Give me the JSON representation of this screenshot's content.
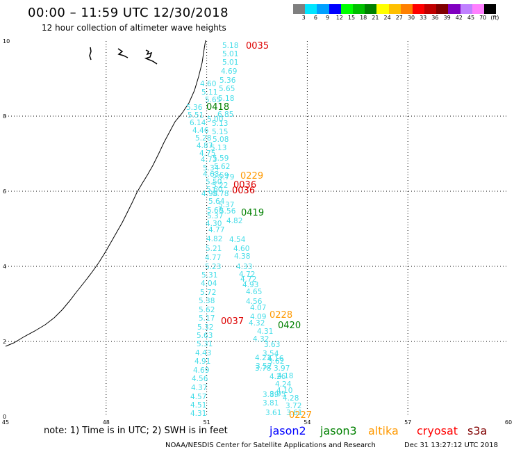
{
  "header": {
    "title": "00:00 – 11:59 UTC 12/30/2018",
    "subtitle": "12 hour collection of altimeter wave heights"
  },
  "colorbar": {
    "colors": [
      "#7f7f7f",
      "#00e5ff",
      "#00a0ff",
      "#0000ff",
      "#00ff00",
      "#00c000",
      "#008000",
      "#ffff00",
      "#ffc000",
      "#ff8000",
      "#ff0000",
      "#c00000",
      "#800000",
      "#8000c0",
      "#c080ff",
      "#ff80ff",
      "#000000"
    ],
    "labels": [
      "3",
      "6",
      "9",
      "12",
      "15",
      "18",
      "21",
      "24",
      "27",
      "30",
      "33",
      "36",
      "39",
      "42",
      "45",
      "70",
      "(ft)"
    ]
  },
  "axes": {
    "x_labels": [
      "45",
      "48",
      "51",
      "54",
      "57",
      "60"
    ],
    "y_labels": [
      "0",
      "2",
      "4",
      "6",
      "8",
      "10"
    ]
  },
  "wave_heights": {
    "color": "#44dde8",
    "values": [
      "5.18",
      "5.01",
      "5.01",
      "4.69",
      "5.36",
      "4.60",
      "5.65",
      "5.11",
      "5.18",
      "5.65",
      "5.36",
      "6.85",
      "5.51",
      "5.00",
      "6.14",
      "5.13",
      "4.46",
      "5.15",
      "5.28",
      "5.08",
      "4.87",
      "5.13",
      "4.75",
      "5.59",
      "4.73",
      "5.62",
      "5.34",
      "4.63",
      "5.59",
      "5.79",
      "5.50",
      "5.22",
      "5.60",
      "4.98",
      "5.78",
      "5.64",
      "5.37",
      "5.60",
      "5.56",
      "5.37",
      "4.82",
      "4.30",
      "4.77",
      "4.82",
      "4.54",
      "5.21",
      "4.60",
      "4.77",
      "4.38",
      "5.23",
      "4.33",
      "5.31",
      "4.72",
      "4.04",
      "4.72",
      "5.72",
      "4.93",
      "5.38",
      "4.65",
      "5.62",
      "4.56",
      "5.17",
      "4.07",
      "5.32",
      "4.09",
      "5.63",
      "4.32",
      "5.31",
      "4.31",
      "4.43",
      "4.32",
      "4.91",
      "3.63",
      "4.69",
      "3.54",
      "4.56",
      "4.23",
      "4.37",
      "4.16",
      "4.57",
      "3.52",
      "4.51",
      "3.62",
      "4.31",
      "3.78",
      "3.97",
      "4.18",
      "4.26",
      "4.24",
      "3.95",
      "3.89",
      "4.10",
      "3.81",
      "4.28",
      "3.61",
      "3.72",
      "3.61"
    ]
  },
  "pass_labels": [
    {
      "text": "0035",
      "color": "#dd0000"
    },
    {
      "text": "0418",
      "color": "#008000"
    },
    {
      "text": "0229",
      "color": "#ff9900"
    },
    {
      "text": "0036",
      "color": "#dd0000"
    },
    {
      "text": "0036",
      "color": "#dd0000"
    },
    {
      "text": "0419",
      "color": "#008000"
    },
    {
      "text": "0228",
      "color": "#ff9900"
    },
    {
      "text": "0037",
      "color": "#dd0000"
    },
    {
      "text": "0420",
      "color": "#008000"
    },
    {
      "text": "0227",
      "color": "#ff9900"
    }
  ],
  "footer": {
    "note": "note: 1) Time is in UTC; 2) SWH is in feet",
    "legend": [
      {
        "name": "jason2",
        "color": "#0000ff"
      },
      {
        "name": "jason3",
        "color": "#008000"
      },
      {
        "name": "altika",
        "color": "#ff9900"
      },
      {
        "name": "cryosat",
        "color": "#ff0000"
      },
      {
        "name": "s3a",
        "color": "#800000"
      }
    ],
    "credit": "NOAA/NESDIS Center for Satellite Applications and Research",
    "timestamp": "Dec 31 13:27:12 UTC 2018"
  }
}
